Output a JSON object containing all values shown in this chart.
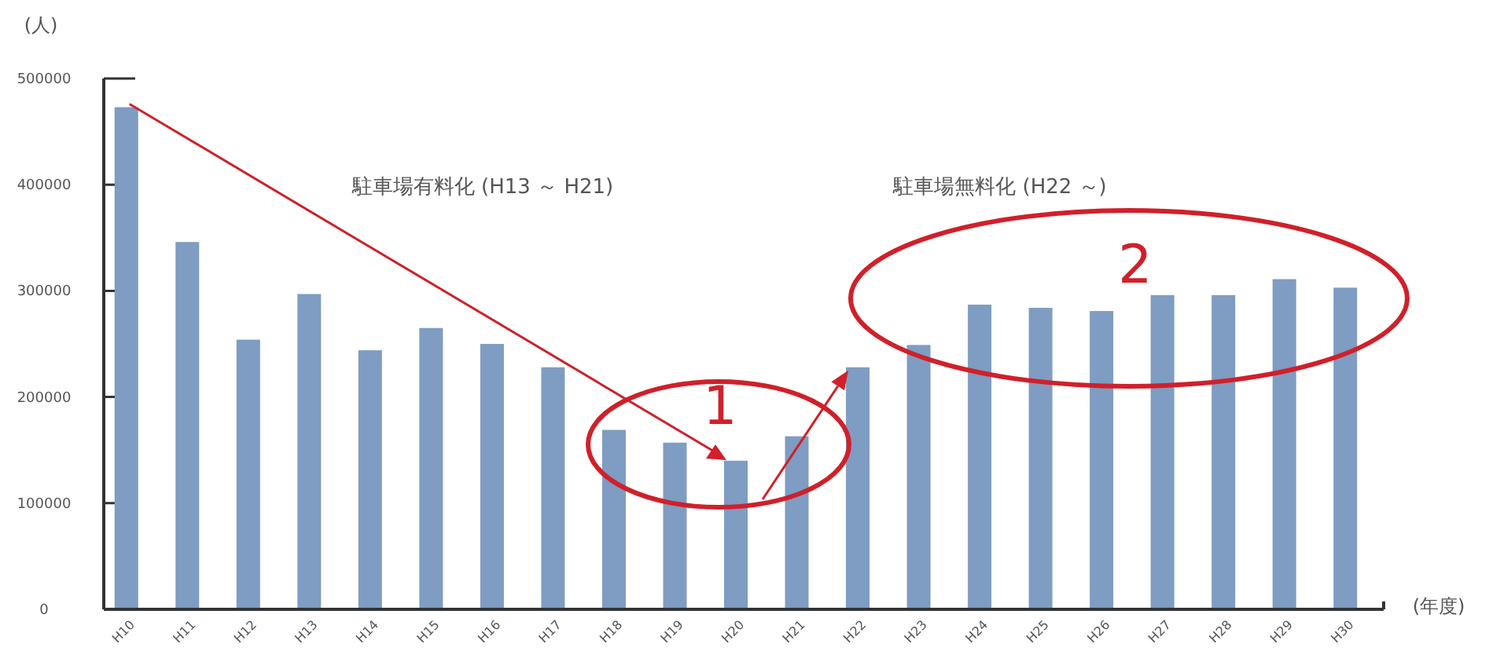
{
  "chart_data": {
    "type": "bar",
    "ylabel": "(人)",
    "xlabel": "(年度)",
    "categories": [
      "H10",
      "H11",
      "H12",
      "H13",
      "H14",
      "H15",
      "H16",
      "H17",
      "H18",
      "H19",
      "H20",
      "H21",
      "H22",
      "H23",
      "H24",
      "H25",
      "H26",
      "H27",
      "H28",
      "H29",
      "H30"
    ],
    "values": [
      473000,
      346000,
      254000,
      297000,
      244000,
      265000,
      250000,
      228000,
      169000,
      157000,
      140000,
      163000,
      228000,
      249000,
      287000,
      284000,
      281000,
      296000,
      296000,
      311000,
      303000
    ],
    "color": "#7f9cc2",
    "ylim": [
      0,
      500000
    ],
    "yticks": [
      0,
      100000,
      200000,
      300000,
      400000,
      500000
    ],
    "grid": false,
    "annotations": [
      "駐車場有料化 (H13 ～ H21)",
      "駐車場無料化 (H22 ～)",
      {
        "text": "1",
        "x": "H22",
        "y": 228000
      },
      "2"
    ]
  }
}
